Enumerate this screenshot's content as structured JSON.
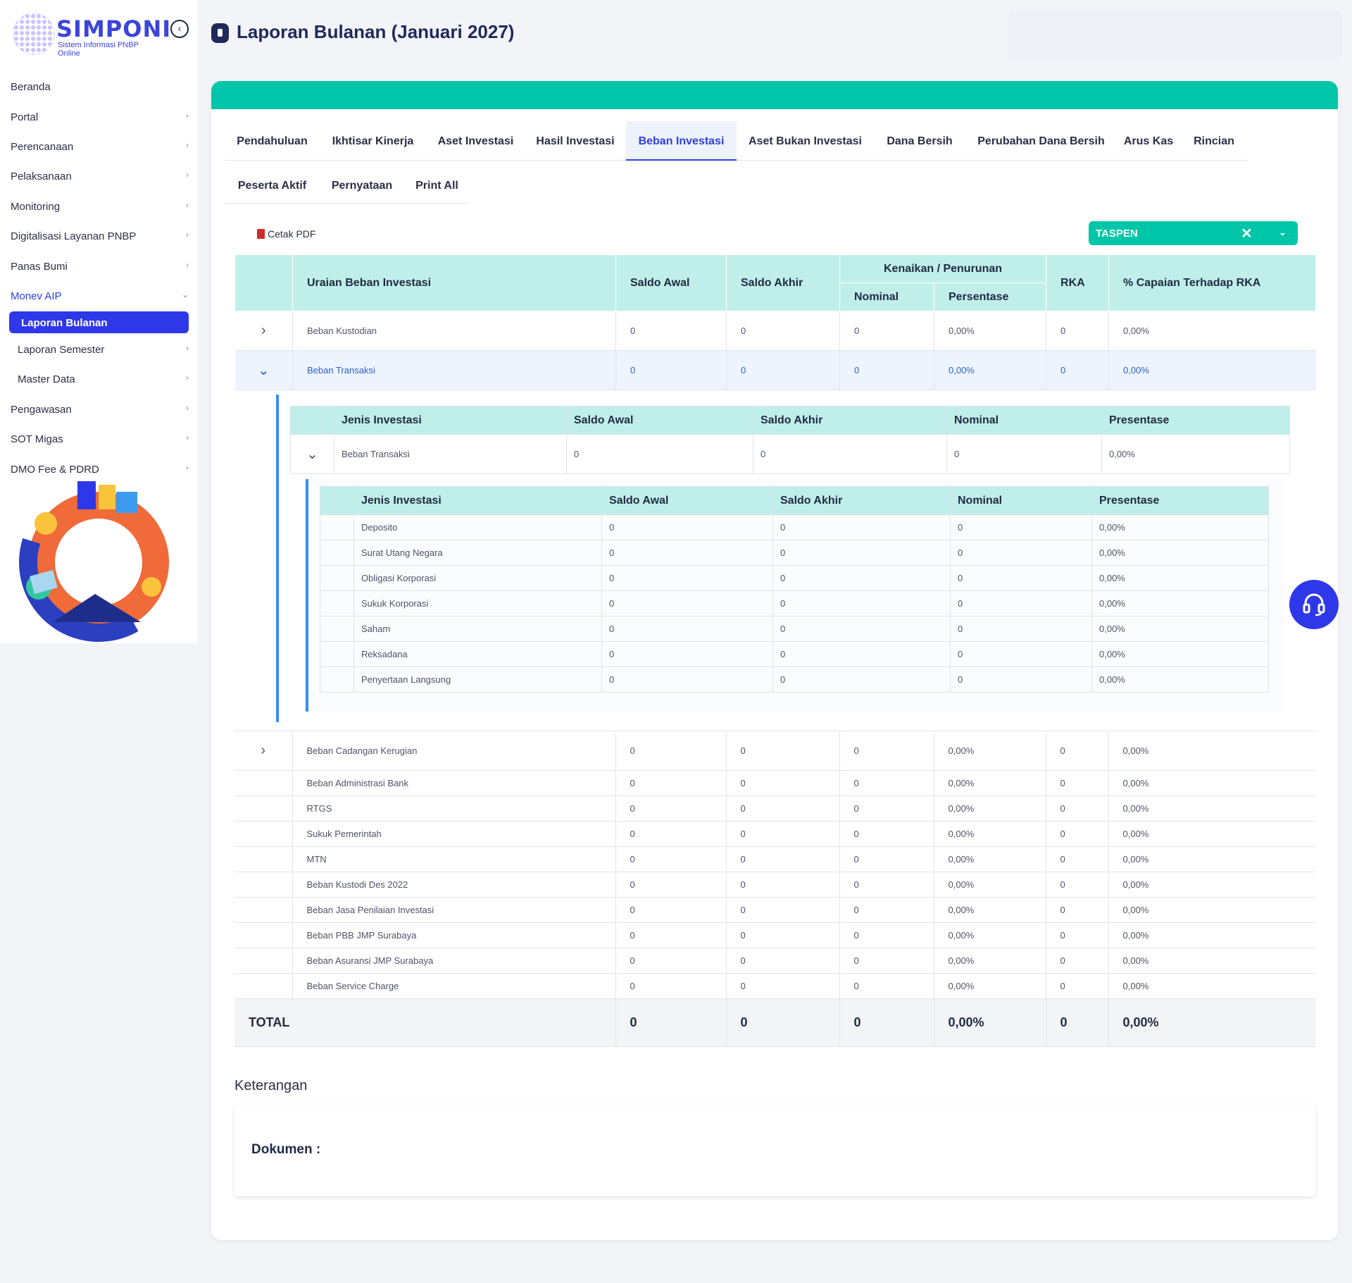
{
  "brand": {
    "name": "SIMPONI",
    "tagline": "Sistem Informasi PNBP Online"
  },
  "sidebar": {
    "items": [
      {
        "label": "Beranda"
      },
      {
        "label": "Portal"
      },
      {
        "label": "Perencanaan"
      },
      {
        "label": "Pelaksanaan"
      },
      {
        "label": "Monitoring"
      },
      {
        "label": "Digitalisasi Layanan PNBP"
      },
      {
        "label": "Panas Bumi"
      },
      {
        "label": "Monev AIP"
      },
      {
        "label": "Laporan Bulanan"
      },
      {
        "label": "Laporan Semester"
      },
      {
        "label": "Master Data"
      },
      {
        "label": "Pengawasan"
      },
      {
        "label": "SOT Migas"
      },
      {
        "label": "DMO Fee & PDRD"
      }
    ]
  },
  "page": {
    "title": "Laporan Bulanan (Januari 2027)"
  },
  "tabs": {
    "row1": [
      "Pendahuluan",
      "Ikhtisar Kinerja",
      "Aset Investasi",
      "Hasil Investasi",
      "Beban Investasi",
      "Aset Bukan Investasi",
      "Dana Bersih",
      "Perubahan Dana Bersih",
      "Arus Kas",
      "Rincian"
    ],
    "row2": [
      "Peserta Aktif",
      "Pernyataan",
      "Print All"
    ],
    "active": "Beban Investasi"
  },
  "toolbar": {
    "cetak_pdf": "Cetak PDF",
    "select_value": "TASPEN"
  },
  "main_table": {
    "headers": {
      "uraian": "Uraian Beban Investasi",
      "saldo_awal": "Saldo Awal",
      "saldo_akhir": "Saldo Akhir",
      "kenaikan": "Kenaikan / Penurunan",
      "nominal": "Nominal",
      "persentase": "Persentase",
      "rka": "RKA",
      "capaian": "% Capaian Terhadap RKA"
    },
    "rows": [
      {
        "name": "Beban Kustodian",
        "saldo_awal": "0",
        "saldo_akhir": "0",
        "nominal": "0",
        "persentase": "0,00%",
        "rka": "0",
        "capaian": "0,00%"
      },
      {
        "name": "Beban Transaksi",
        "saldo_awal": "0",
        "saldo_akhir": "0",
        "nominal": "0",
        "persentase": "0,00%",
        "rka": "0",
        "capaian": "0,00%"
      }
    ]
  },
  "nested1": {
    "headers": {
      "jenis": "Jenis Investasi",
      "saldo_awal": "Saldo Awal",
      "saldo_akhir": "Saldo Akhir",
      "nominal": "Nominal",
      "presentase": "Presentase"
    },
    "row": {
      "name": "Beban Transaksi",
      "saldo_awal": "0",
      "saldo_akhir": "0",
      "nominal": "0",
      "presentase": "0,00%"
    }
  },
  "nested2": {
    "headers": {
      "jenis": "Jenis Investasi",
      "saldo_awal": "Saldo Awal",
      "saldo_akhir": "Saldo Akhir",
      "nominal": "Nominal",
      "presentase": "Presentase"
    },
    "rows": [
      {
        "name": "Deposito",
        "saldo_awal": "0",
        "saldo_akhir": "0",
        "nominal": "0",
        "presentase": "0,00%"
      },
      {
        "name": "Surat Utang Negara",
        "saldo_awal": "0",
        "saldo_akhir": "0",
        "nominal": "0",
        "presentase": "0,00%"
      },
      {
        "name": "Obligasi Korporasi",
        "saldo_awal": "0",
        "saldo_akhir": "0",
        "nominal": "0",
        "presentase": "0,00%"
      },
      {
        "name": "Sukuk Korporasi",
        "saldo_awal": "0",
        "saldo_akhir": "0",
        "nominal": "0",
        "presentase": "0,00%"
      },
      {
        "name": "Saham",
        "saldo_awal": "0",
        "saldo_akhir": "0",
        "nominal": "0",
        "presentase": "0,00%"
      },
      {
        "name": "Reksadana",
        "saldo_awal": "0",
        "saldo_akhir": "0",
        "nominal": "0",
        "presentase": "0,00%"
      },
      {
        "name": "Penyertaan Langsung",
        "saldo_awal": "0",
        "saldo_akhir": "0",
        "nominal": "0",
        "presentase": "0,00%"
      }
    ]
  },
  "bottom_table": {
    "rows": [
      {
        "name": "Beban Cadangan Kerugian",
        "saldo_awal": "0",
        "saldo_akhir": "0",
        "nominal": "0",
        "persentase": "0,00%",
        "rka": "0",
        "capaian": "0,00%"
      },
      {
        "name": "Beban Administrasi Bank",
        "saldo_awal": "0",
        "saldo_akhir": "0",
        "nominal": "0",
        "persentase": "0,00%",
        "rka": "0",
        "capaian": "0,00%"
      },
      {
        "name": "RTGS",
        "saldo_awal": "0",
        "saldo_akhir": "0",
        "nominal": "0",
        "persentase": "0,00%",
        "rka": "0",
        "capaian": "0,00%"
      },
      {
        "name": "Sukuk Pemerintah",
        "saldo_awal": "0",
        "saldo_akhir": "0",
        "nominal": "0",
        "persentase": "0,00%",
        "rka": "0",
        "capaian": "0,00%"
      },
      {
        "name": "MTN",
        "saldo_awal": "0",
        "saldo_akhir": "0",
        "nominal": "0",
        "persentase": "0,00%",
        "rka": "0",
        "capaian": "0,00%"
      },
      {
        "name": "Beban Kustodi Des 2022",
        "saldo_awal": "0",
        "saldo_akhir": "0",
        "nominal": "0",
        "persentase": "0,00%",
        "rka": "0",
        "capaian": "0,00%"
      },
      {
        "name": "Beban Jasa Penilaian Investasi",
        "saldo_awal": "0",
        "saldo_akhir": "0",
        "nominal": "0",
        "persentase": "0,00%",
        "rka": "0",
        "capaian": "0,00%"
      },
      {
        "name": "Beban PBB JMP Surabaya",
        "saldo_awal": "0",
        "saldo_akhir": "0",
        "nominal": "0",
        "persentase": "0,00%",
        "rka": "0",
        "capaian": "0,00%"
      },
      {
        "name": "Beban Asuransi JMP Surabaya",
        "saldo_awal": "0",
        "saldo_akhir": "0",
        "nominal": "0",
        "persentase": "0,00%",
        "rka": "0",
        "capaian": "0,00%"
      },
      {
        "name": "Beban Service Charge",
        "saldo_awal": "0",
        "saldo_akhir": "0",
        "nominal": "0",
        "persentase": "0,00%",
        "rka": "0",
        "capaian": "0,00%"
      }
    ],
    "total": {
      "label": "TOTAL",
      "saldo_awal": "0",
      "saldo_akhir": "0",
      "nominal": "0",
      "persentase": "0,00%",
      "rka": "0",
      "capaian": "0,00%"
    }
  },
  "keterangan": {
    "title": "Keterangan",
    "dokumen_label": "Dokumen :"
  },
  "colors": {
    "primary": "#2f38e8",
    "accent": "#00c6a9",
    "header_cell": "#c0efe9"
  },
  "icons": {
    "help": "headset-icon",
    "collapse": "chevron-left-circle-icon",
    "pdf": "pdf-file-icon"
  }
}
